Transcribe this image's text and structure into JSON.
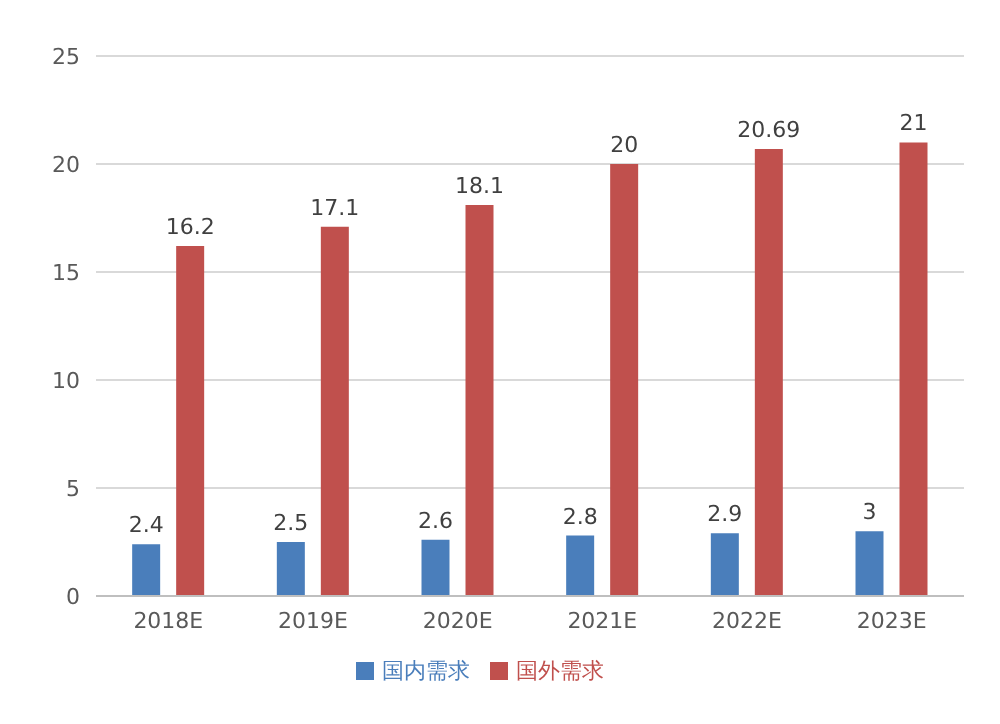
{
  "chart_data": {
    "type": "bar",
    "categories": [
      "2018E",
      "2019E",
      "2020E",
      "2021E",
      "2022E",
      "2023E"
    ],
    "series": [
      {
        "name": "国内需求",
        "color": "#4a7ebb",
        "values": [
          2.4,
          2.5,
          2.6,
          2.8,
          2.9,
          3
        ]
      },
      {
        "name": "国外需求",
        "color": "#c0504d",
        "values": [
          16.2,
          17.1,
          18.1,
          20,
          20.69,
          21
        ]
      }
    ],
    "ylim": [
      0,
      25
    ],
    "yticks": [
      0,
      5,
      10,
      15,
      20,
      25
    ],
    "grid": "y",
    "legend": "bottom",
    "data_labels": true
  }
}
